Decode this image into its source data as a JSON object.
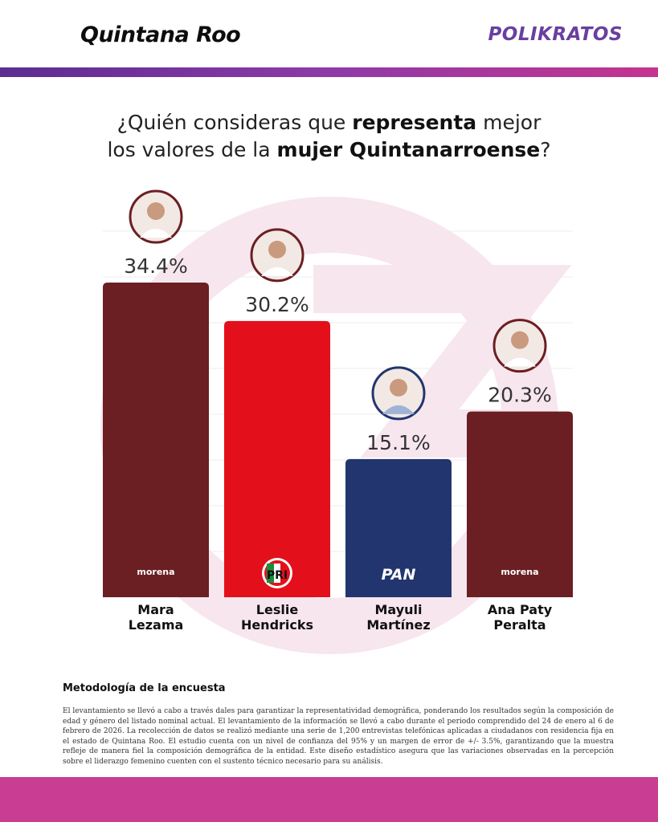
{
  "header": {
    "title": "Quintana Roo",
    "brand": "POLIKRATOS"
  },
  "question": {
    "part1": "¿Quién consideras que ",
    "bold1": "representa",
    "part2": " mejor",
    "part3": "los valores de la ",
    "bold2": "mujer Quintanarroense",
    "part4": "?"
  },
  "colors": {
    "morena": "#6b1f23",
    "pri": "#e3101c",
    "pan": "#22356f",
    "brand_purple": "#6a3fa0",
    "band": "#c93e92"
  },
  "chart_data": {
    "type": "bar",
    "categories": [
      "Mara Lezama",
      "Leslie Hendricks",
      "Mayuli Martínez",
      "Ana Paty Peralta"
    ],
    "name_lines": [
      [
        "Mara",
        "Lezama"
      ],
      [
        "Leslie",
        "Hendricks"
      ],
      [
        "Mayuli",
        "Martínez"
      ],
      [
        "Ana Paty",
        "Peralta"
      ]
    ],
    "values": [
      34.4,
      30.2,
      15.1,
      20.3
    ],
    "value_labels": [
      "34.4%",
      "30.2%",
      "15.1%",
      "20.3%"
    ],
    "party_logos": [
      "morena",
      "PRI",
      "PAN",
      "morena"
    ],
    "bar_colors": [
      "#6b1f23",
      "#e3101c",
      "#22356f",
      "#6b1f23"
    ],
    "ylim": [
      0,
      34.4
    ],
    "grid": true
  },
  "methodology": {
    "title": "Metodología de la encuesta",
    "text": "El levantamiento se llevó a cabo a través dales para garantizar la representatividad demográfica, ponderando los resultados según la composición de edad y género del listado nominal actual. El levantamiento de la información se llevó a cabo durante el periodo comprendido del 24 de enero al 6 de febrero de 2026. La recolección de datos se realizó mediante una serie de 1,200 entrevistas telefónicas aplicadas a ciudadanos con residencia fija en el estado de Quintana Roo. El estudio cuenta con un nivel de confianza del 95% y un margen de error de +/- 3.5%, garantizando que la muestra refleje de manera fiel la composición demográfica de la entidad. Este diseño estadístico asegura que las variaciones observadas en la percepción sobre el liderazgo femenino cuenten con el sustento técnico necesario para su análisis."
  }
}
